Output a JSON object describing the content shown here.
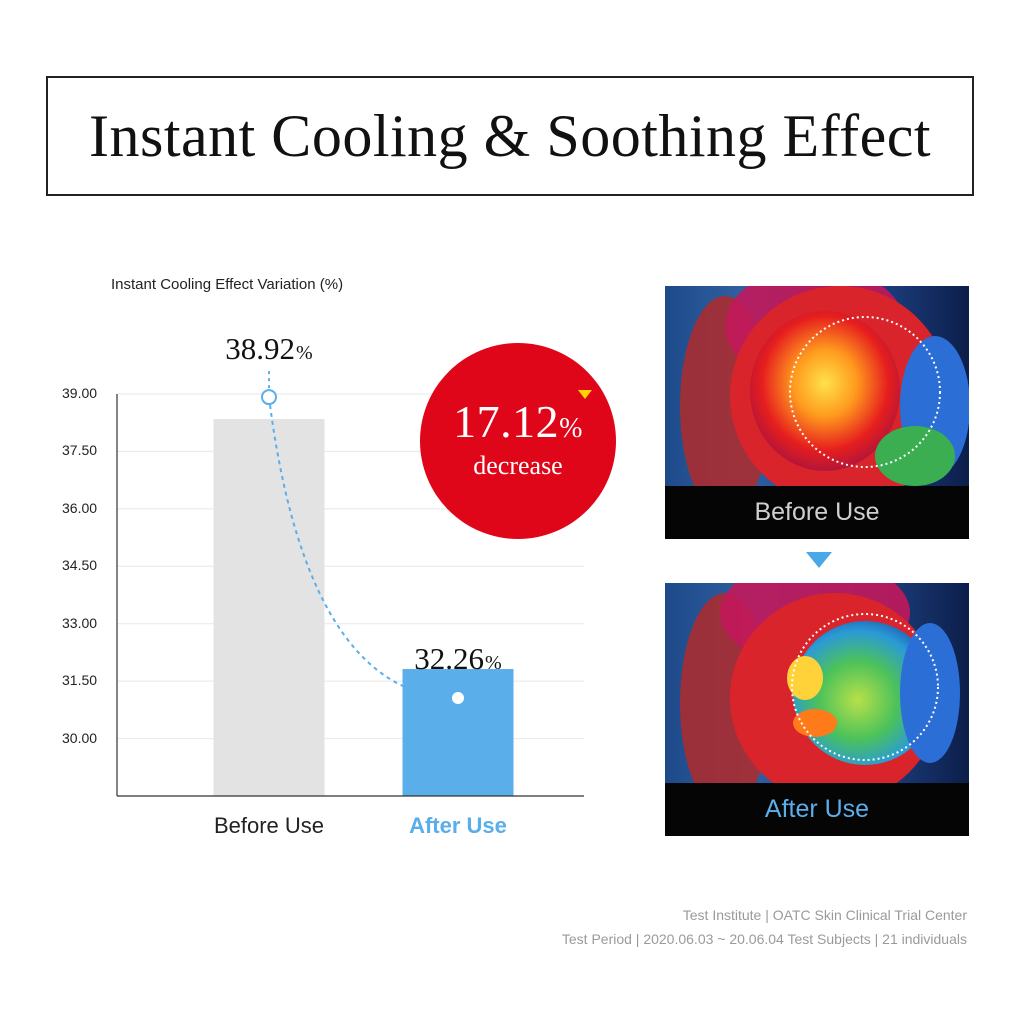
{
  "title": "Instant Cooling & Soothing Effect",
  "chart_label": "Instant Cooling Effect Variation (%)",
  "chart_data": {
    "type": "bar",
    "categories": [
      "Before Use",
      "After Use"
    ],
    "values": [
      38.92,
      32.26
    ],
    "value_labels": [
      {
        "value": "38.92",
        "unit": "%"
      },
      {
        "value": "32.26",
        "unit": "%"
      }
    ],
    "yticks": [
      30.0,
      31.5,
      33.0,
      34.5,
      36.0,
      37.5,
      39.0
    ],
    "ytick_labels": [
      "30.00",
      "31.50",
      "33.00",
      "34.50",
      "36.00",
      "37.50",
      "39.00"
    ],
    "ylim": [
      28.5,
      39.0
    ],
    "grid": true,
    "colors": {
      "before": "#e3e3e3",
      "after": "#5aaeea",
      "curve": "#5aaeea"
    }
  },
  "badge": {
    "value": "17.12",
    "unit": "%",
    "label": "decrease",
    "color": "#e0061a",
    "arrow_color": "#ffd400"
  },
  "thermal": {
    "before_caption": "Before Use",
    "after_caption": "After Use",
    "before_caption_color": "#cfcfcf",
    "after_caption_color": "#5aaeea"
  },
  "footnote": {
    "line1": "Test Institute | OATC Skin Clinical Trial Center",
    "line2": "Test Period | 2020.06.03 ~ 20.06.04 Test Subjects | 21 individuals"
  }
}
